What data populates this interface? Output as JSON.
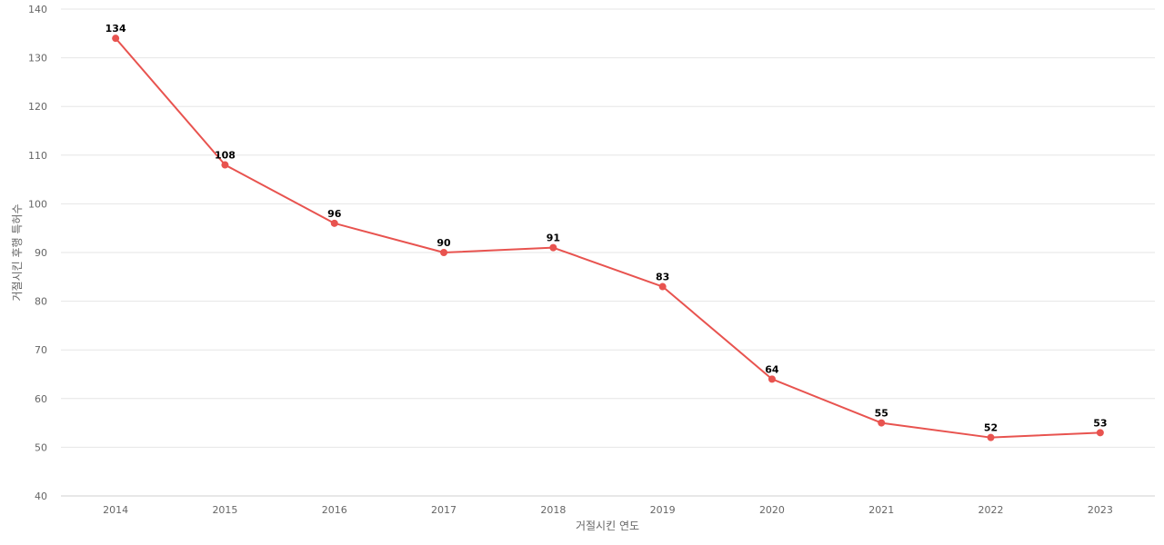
{
  "chart_data": {
    "type": "line",
    "title": "",
    "xlabel": "거절시킨 연도",
    "ylabel": "거절시킨 후행 특허수",
    "categories": [
      "2014",
      "2015",
      "2016",
      "2017",
      "2018",
      "2019",
      "2020",
      "2021",
      "2022",
      "2023"
    ],
    "series": [
      {
        "values": [
          134,
          108,
          96,
          90,
          91,
          83,
          64,
          55,
          52,
          53
        ],
        "color": "#e8534f"
      }
    ],
    "ylim": [
      40,
      140
    ],
    "yticks": [
      "40",
      "50",
      "60",
      "70",
      "80",
      "90",
      "100",
      "110",
      "120",
      "130",
      "140"
    ],
    "data_labels": [
      "134",
      "108",
      "96",
      "90",
      "91",
      "83",
      "64",
      "55",
      "52",
      "53"
    ],
    "grid": true,
    "legend": "none"
  }
}
